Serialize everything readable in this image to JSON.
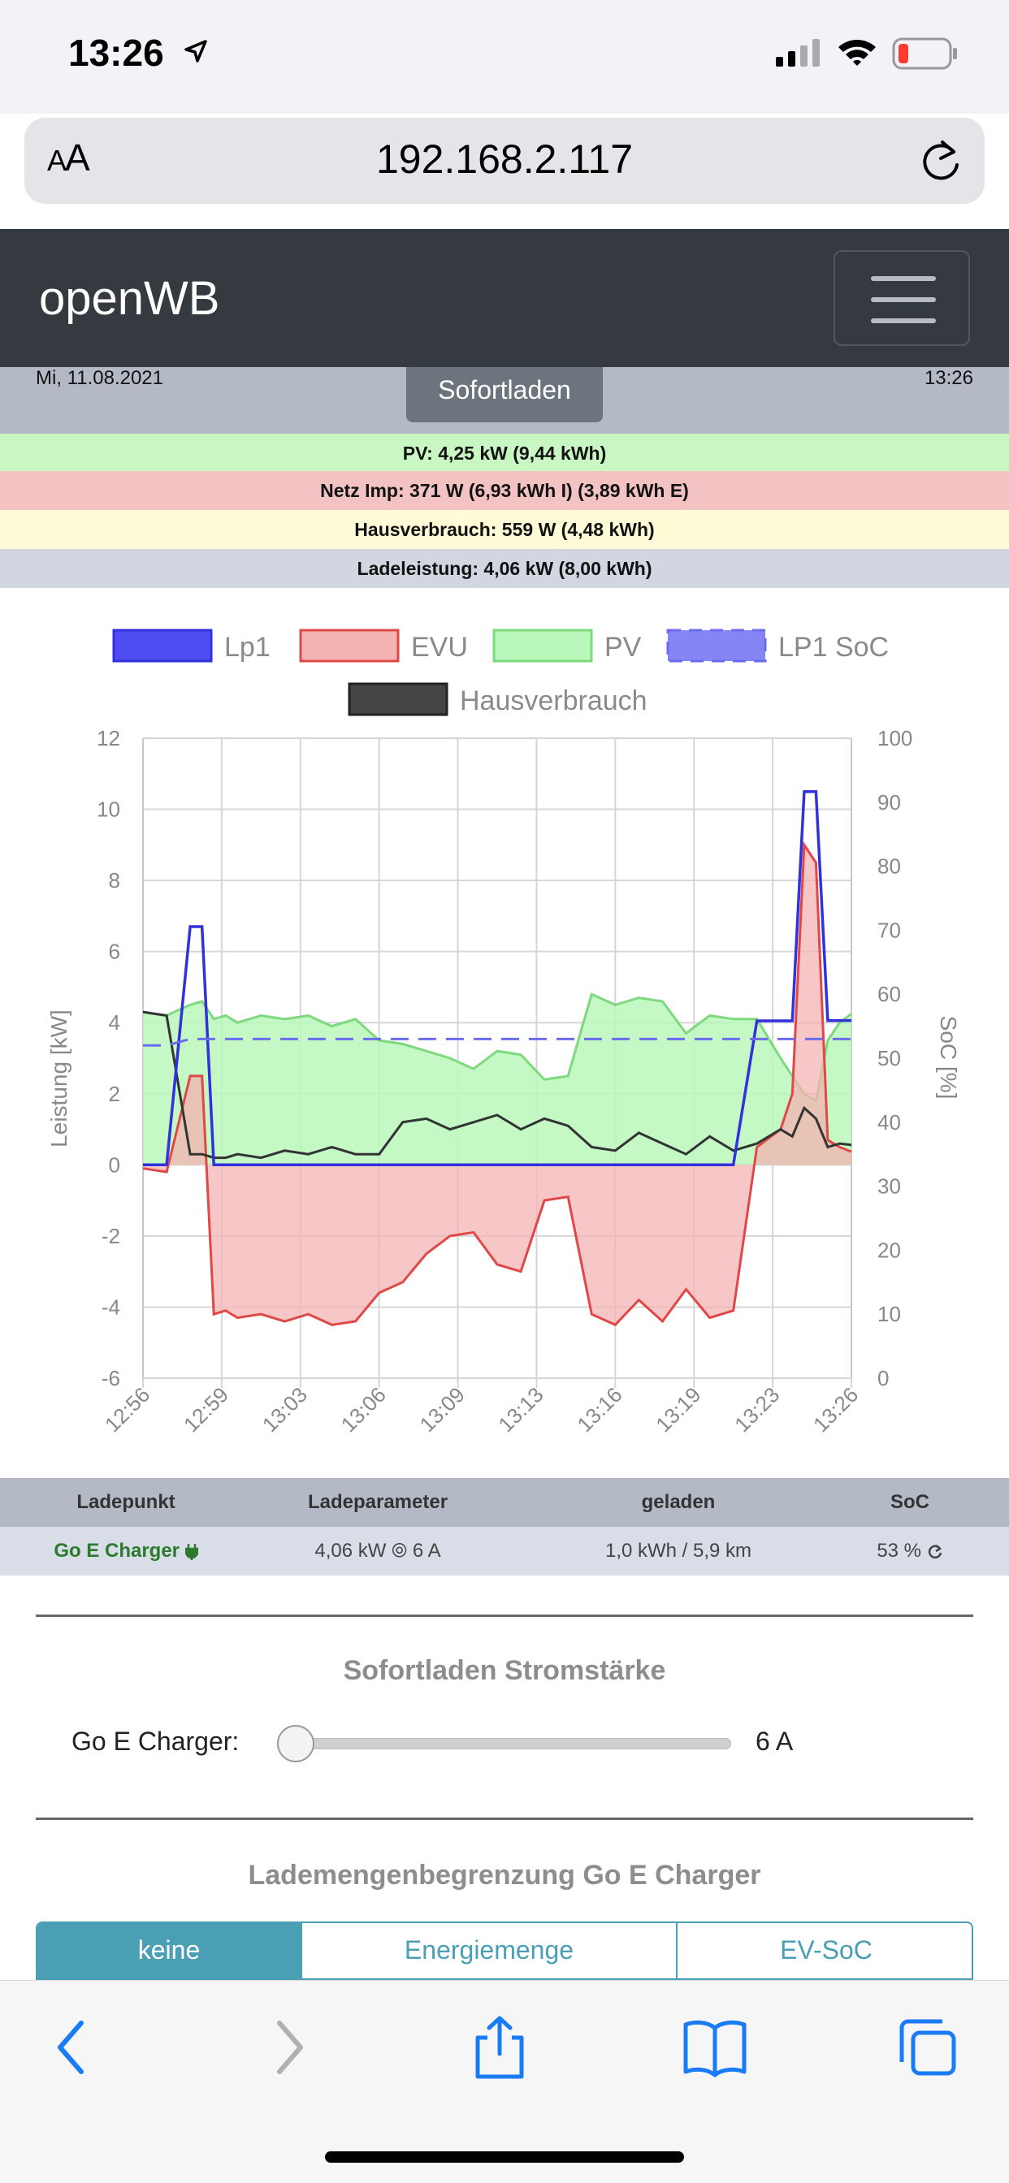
{
  "status_bar": {
    "time": "13:26"
  },
  "browser": {
    "text_size_small": "A",
    "text_size_large": "A",
    "url": "192.168.2.117"
  },
  "navbar": {
    "brand": "openWB"
  },
  "header": {
    "date": "Mi, 11.08.2021",
    "time": "13:26",
    "mode": "Sofortladen",
    "pv": "PV: 4,25 kW (9,44 kWh)",
    "netz": "Netz Imp: 371 W (6,93 kWh I) (3,89 kWh E)",
    "hausverbrauch": "Hausverbrauch: 559 W (4,48 kWh)",
    "ladeleistung": "Ladeleistung: 4,06 kW (8,00 kWh)"
  },
  "chart_data": {
    "type": "line",
    "legend": [
      "Lp1",
      "EVU",
      "PV",
      "LP1 SoC",
      "Hausverbrauch"
    ],
    "legend_position": "top",
    "ylabel": "Leistung [kW]",
    "y2label": "SoC [%]",
    "ylim": [
      -6,
      12
    ],
    "y2lim": [
      0,
      100
    ],
    "y_ticks": [
      "12",
      "10",
      "8",
      "6",
      "4",
      "2",
      "0",
      "-2",
      "-4",
      "-6"
    ],
    "y2_ticks": [
      "100",
      "90",
      "80",
      "70",
      "60",
      "50",
      "40",
      "30",
      "20",
      "10",
      "0"
    ],
    "x_ticks": [
      "12:56",
      "12:59",
      "13:03",
      "13:06",
      "13:09",
      "13:13",
      "13:16",
      "13:19",
      "13:23",
      "13:26"
    ],
    "grid": true,
    "colors": {
      "Lp1": "#3232dd",
      "EVU": "#e04848",
      "EVU_fill": "#f4b3b3",
      "PV": "#7ed97e",
      "PV_fill": "#baf7ba",
      "SoC": "#6b6bf0",
      "Hausverbrauch": "#333333"
    },
    "x": [
      0,
      1,
      2,
      2.5,
      3,
      3.5,
      4,
      5,
      6,
      7,
      8,
      9,
      10,
      11,
      12,
      13,
      14,
      15,
      16,
      17,
      18,
      19,
      20,
      21,
      22,
      23,
      24,
      25,
      26,
      27,
      27.5,
      28,
      28.5,
      29,
      29.5,
      30
    ],
    "series": [
      {
        "name": "Lp1",
        "values": [
          0,
          0,
          6.7,
          6.7,
          0,
          0,
          0,
          0,
          0,
          0,
          0,
          0,
          0,
          0,
          0,
          0,
          0,
          0,
          0,
          0,
          0,
          0,
          0,
          0,
          0,
          0,
          0,
          0,
          4.05,
          4.05,
          4.05,
          10.5,
          10.5,
          4.06,
          4.06,
          4.06
        ]
      },
      {
        "name": "EVU",
        "values": [
          -0.1,
          -0.2,
          2.5,
          2.5,
          -4.2,
          -4.1,
          -4.3,
          -4.2,
          -4.4,
          -4.2,
          -4.5,
          -4.4,
          -3.6,
          -3.3,
          -2.5,
          -2.0,
          -1.9,
          -2.8,
          -3.0,
          -1.0,
          -0.9,
          -4.2,
          -4.5,
          -3.8,
          -4.4,
          -3.5,
          -4.3,
          -4.1,
          0.5,
          1.0,
          2.0,
          9.0,
          8.5,
          0.7,
          0.5,
          0.37
        ]
      },
      {
        "name": "PV",
        "values": [
          4.3,
          4.2,
          4.5,
          4.6,
          4.1,
          4.2,
          4.0,
          4.2,
          4.1,
          4.2,
          3.9,
          4.1,
          3.5,
          3.4,
          3.2,
          3.0,
          2.7,
          3.2,
          3.1,
          2.4,
          2.5,
          4.8,
          4.5,
          4.7,
          4.6,
          3.7,
          4.2,
          4.1,
          4.1,
          3.0,
          2.5,
          2.0,
          1.8,
          3.5,
          4.0,
          4.25
        ]
      },
      {
        "name": "LP1 SoC",
        "values": [
          52,
          52,
          53,
          53,
          53,
          53,
          53,
          53,
          53,
          53,
          53,
          53,
          53,
          53,
          53,
          53,
          53,
          53,
          53,
          53,
          53,
          53,
          53,
          53,
          53,
          53,
          53,
          53,
          53,
          53,
          53,
          53,
          53,
          53,
          53,
          53
        ]
      },
      {
        "name": "Hausverbrauch",
        "values": [
          4.3,
          4.2,
          0.3,
          0.3,
          0.2,
          0.2,
          0.3,
          0.2,
          0.4,
          0.3,
          0.5,
          0.3,
          0.3,
          1.2,
          1.3,
          1.0,
          1.2,
          1.4,
          1.0,
          1.3,
          1.1,
          0.5,
          0.4,
          0.9,
          0.6,
          0.3,
          0.8,
          0.4,
          0.6,
          1.0,
          0.8,
          1.6,
          1.3,
          0.5,
          0.6,
          0.56
        ]
      }
    ]
  },
  "table": {
    "headers": {
      "chargepoint": "Ladepunkt",
      "params": "Ladeparameter",
      "charged": "geladen",
      "soc": "SoC"
    },
    "row": {
      "chargepoint": "Go E Charger",
      "params": "4,06 kW ⦾ 6 A",
      "charged": "1,0 kWh / 5,9 km",
      "soc": "53 %"
    }
  },
  "sofortladen": {
    "title": "Sofortladen Stromstärke",
    "charger_label": "Go E Charger:",
    "current_value": "6 A",
    "slider_fraction": 0.0
  },
  "limit": {
    "title": "Lademengenbegrenzung Go E Charger",
    "tabs": [
      "keine",
      "Energiemenge",
      "EV-SoC"
    ],
    "active": "keine"
  }
}
